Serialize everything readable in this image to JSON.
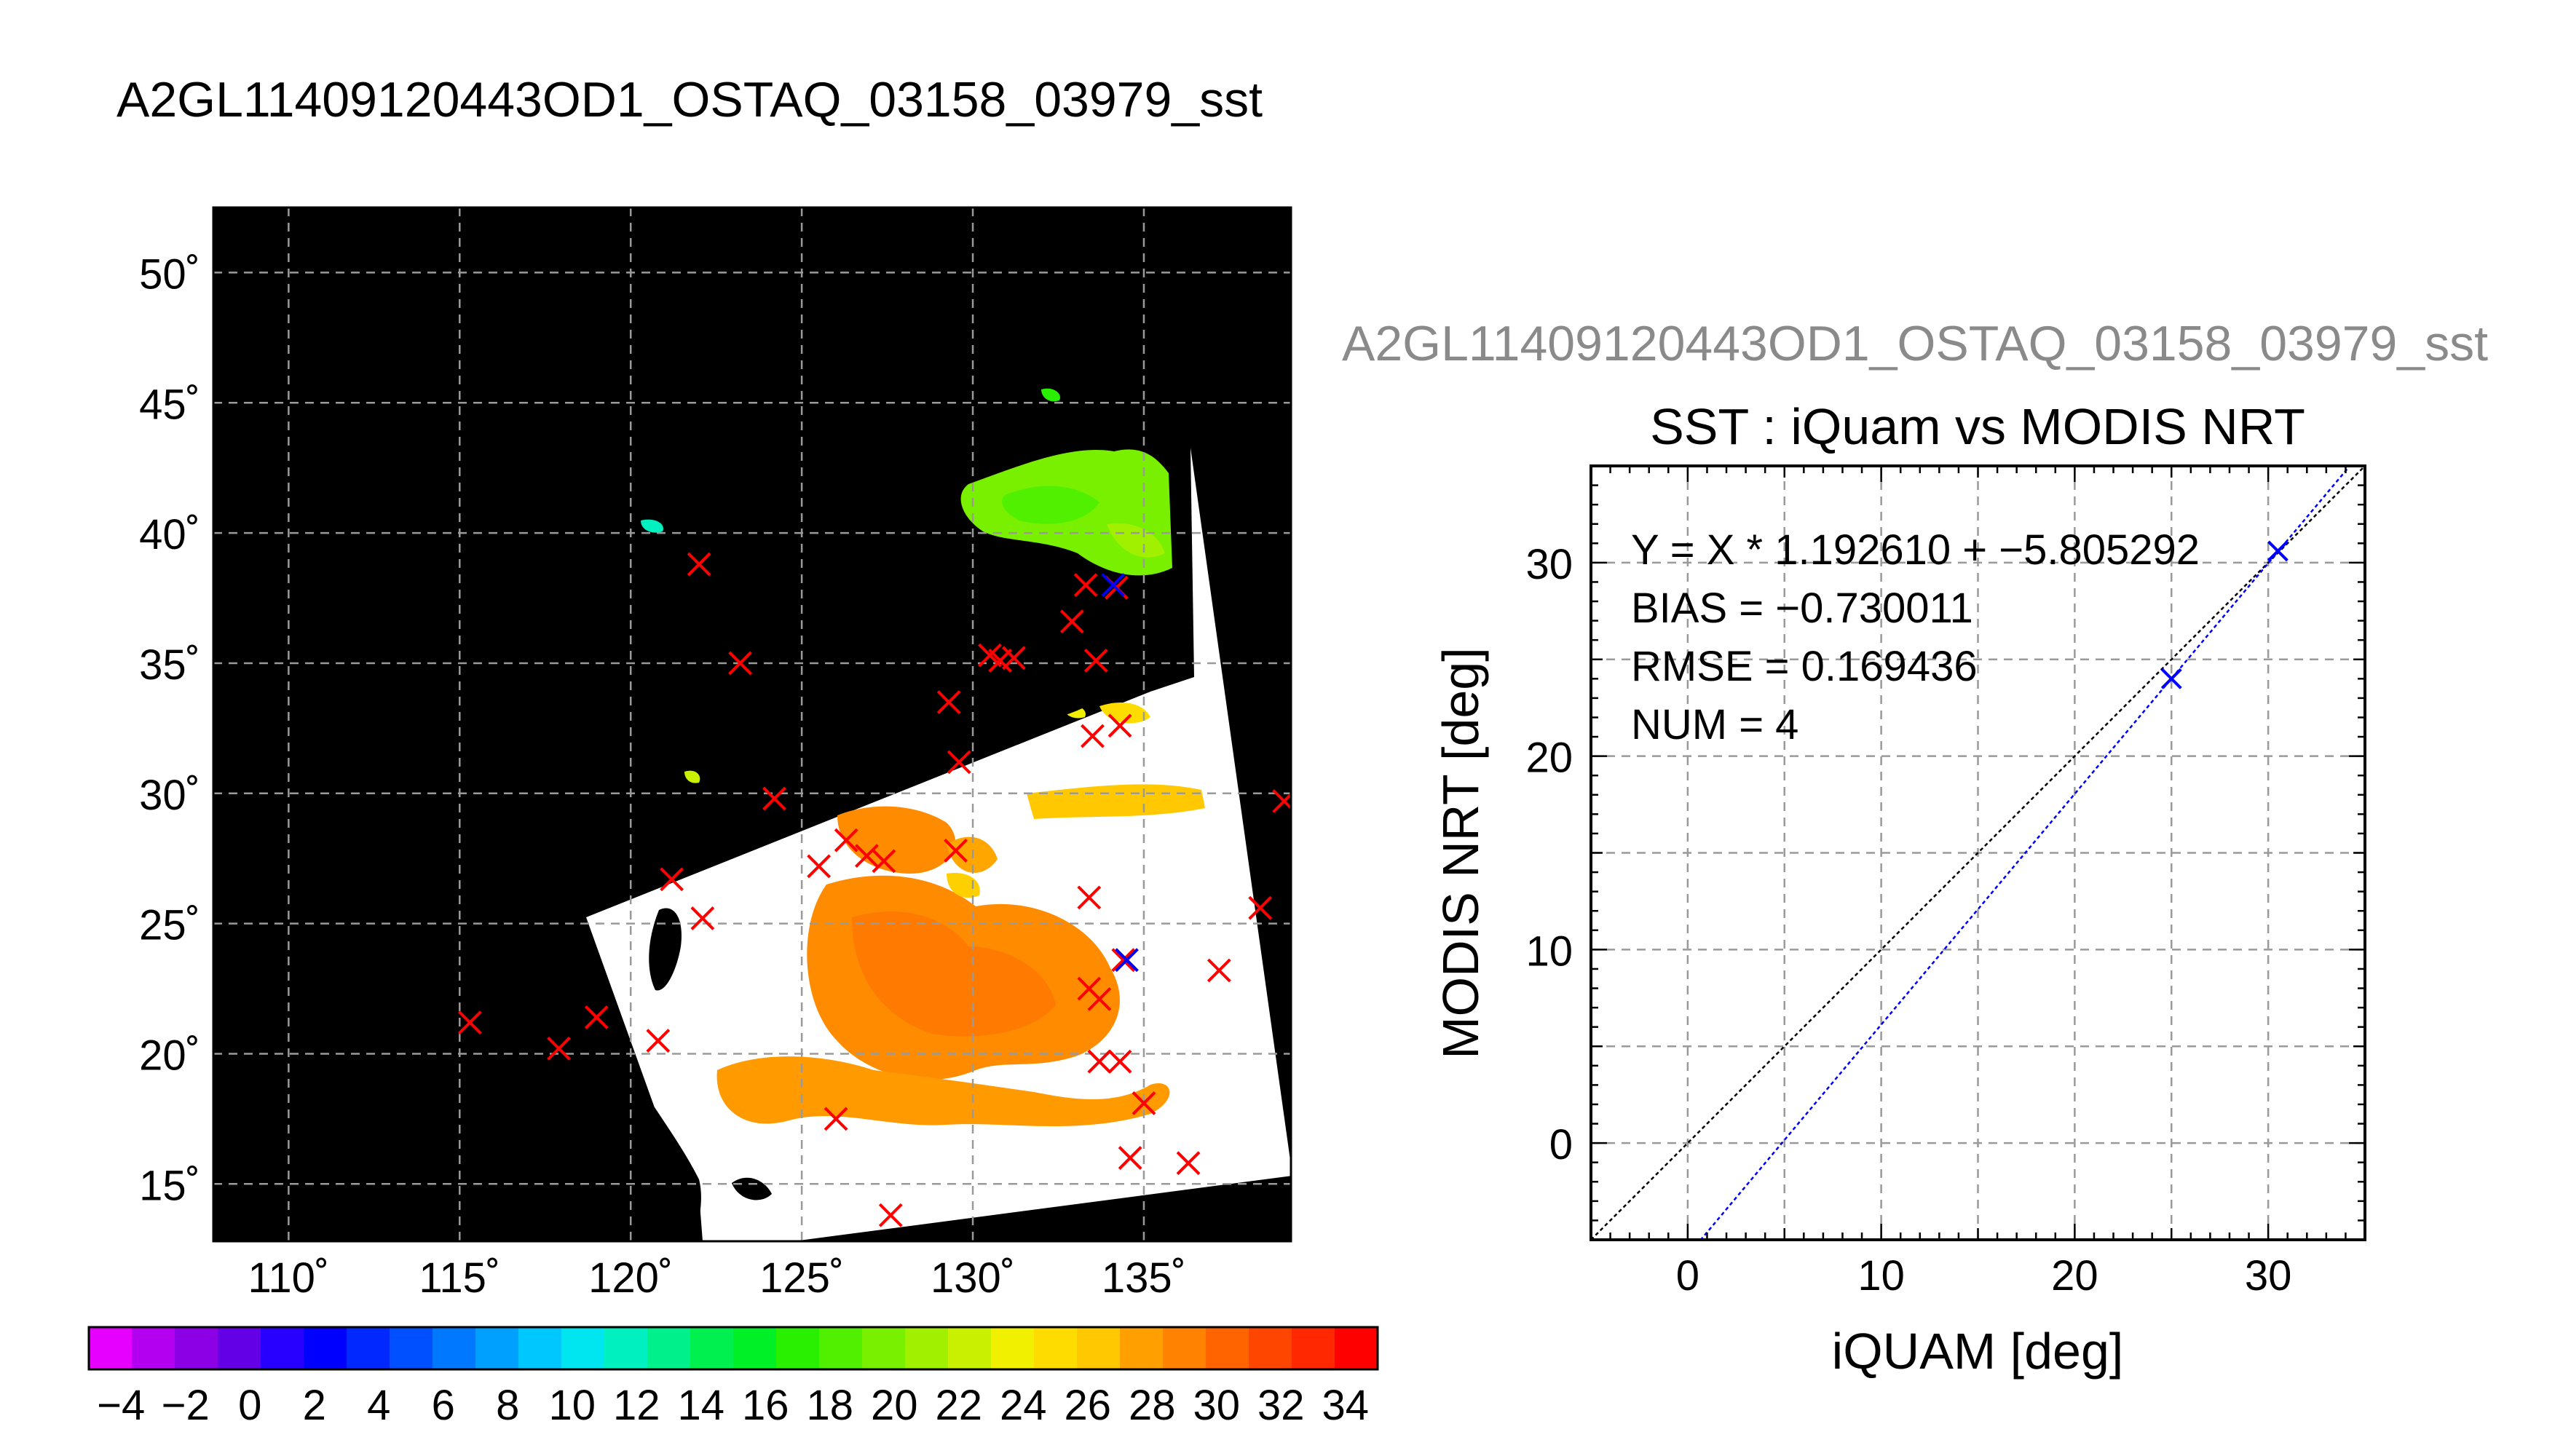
{
  "page": {
    "main_title": "A2GL11409120443OD1_OSTAQ_03158_03979_sst",
    "right_header": "A2GL11409120443OD1_OSTAQ_03158_03979_sst"
  },
  "map": {
    "lat_ticks": [
      "50˚",
      "45˚",
      "40˚",
      "35˚",
      "30˚",
      "25˚",
      "20˚",
      "15˚"
    ],
    "lon_ticks": [
      "110˚",
      "115˚",
      "120˚",
      "125˚",
      "130˚",
      "135˚"
    ],
    "lat_values": [
      50,
      45,
      40,
      35,
      30,
      25,
      20,
      15
    ],
    "lon_values": [
      110,
      115,
      120,
      125,
      130,
      135
    ],
    "lat_range": [
      12.8,
      52.5
    ],
    "lon_range": [
      107.8,
      139.3
    ],
    "background_color": "#000000",
    "land_color": "#000000",
    "no_data_color": "#ffffff",
    "iquam_points_red": [
      [
        122.0,
        38.8
      ],
      [
        123.2,
        35.0
      ],
      [
        129.3,
        33.5
      ],
      [
        130.5,
        35.3
      ],
      [
        130.8,
        35.1
      ],
      [
        131.2,
        35.2
      ],
      [
        129.6,
        31.2
      ],
      [
        133.3,
        38.0
      ],
      [
        134.2,
        37.9
      ],
      [
        132.9,
        36.6
      ],
      [
        133.5,
        32.2
      ],
      [
        134.3,
        32.6
      ],
      [
        124.2,
        29.8
      ],
      [
        125.5,
        27.2
      ],
      [
        126.3,
        28.2
      ],
      [
        126.9,
        27.6
      ],
      [
        129.5,
        27.8
      ],
      [
        127.4,
        27.4
      ],
      [
        121.2,
        26.7
      ],
      [
        122.1,
        25.2
      ],
      [
        133.4,
        26.0
      ],
      [
        134.4,
        23.6
      ],
      [
        133.4,
        22.5
      ],
      [
        133.7,
        22.1
      ],
      [
        137.2,
        23.2
      ],
      [
        139.1,
        29.7
      ],
      [
        138.4,
        25.6
      ],
      [
        115.3,
        21.2
      ],
      [
        117.9,
        20.2
      ],
      [
        119.0,
        21.4
      ],
      [
        120.8,
        20.5
      ],
      [
        133.7,
        19.7
      ],
      [
        134.3,
        19.7
      ],
      [
        135.0,
        18.1
      ],
      [
        134.6,
        16.0
      ],
      [
        136.3,
        15.8
      ],
      [
        126.0,
        17.5
      ],
      [
        127.6,
        13.8
      ],
      [
        133.6,
        35.1
      ]
    ],
    "matched_points_blue": [
      [
        134.1,
        38.0
      ],
      [
        134.5,
        23.6
      ]
    ]
  },
  "colorbar": {
    "tick_labels": [
      "−4",
      "−2",
      "0",
      "2",
      "4",
      "6",
      "8",
      "10",
      "12",
      "14",
      "16",
      "18",
      "20",
      "22",
      "24",
      "26",
      "28",
      "30",
      "32",
      "34"
    ],
    "range": [
      -5,
      35
    ],
    "colors": [
      "#e600ff",
      "#b400f0",
      "#8c00e6",
      "#6400e6",
      "#2800ff",
      "#0000ff",
      "#0028ff",
      "#0050ff",
      "#0078ff",
      "#00a0ff",
      "#00c8ff",
      "#00e6f0",
      "#00f0c0",
      "#00f08c",
      "#00f050",
      "#00f028",
      "#28f000",
      "#50f000",
      "#78f000",
      "#a0f000",
      "#c8f000",
      "#f0f000",
      "#ffdc00",
      "#ffc800",
      "#ffa000",
      "#ff8200",
      "#ff6400",
      "#ff4600",
      "#ff2800",
      "#ff0000"
    ]
  },
  "chart_data": {
    "type": "scatter",
    "title": "SST : iQuam vs MODIS NRT",
    "xlabel": "iQUAM [deg]",
    "ylabel": "MODIS NRT [deg]",
    "xlim": [
      -5,
      35
    ],
    "ylim": [
      -5,
      35
    ],
    "x_ticks": [
      0,
      10,
      20,
      30
    ],
    "y_ticks": [
      0,
      10,
      20,
      30
    ],
    "grid": true,
    "annotations": [
      "Y = X * 1.192610 + −5.805292",
      "BIAS = −0.730011",
      "RMSE = 0.169436",
      "NUM = 4"
    ],
    "points": [
      {
        "x": 30.5,
        "y": 30.6
      },
      {
        "x": 25.0,
        "y": 24.0
      }
    ],
    "series": [
      {
        "type": "line",
        "color": "#000000",
        "slope": 1,
        "intercept": 0
      },
      {
        "type": "line",
        "color": "#0000ff",
        "slope": 1.19261,
        "intercept": -5.805292
      }
    ],
    "point_color": "#0000ff"
  }
}
